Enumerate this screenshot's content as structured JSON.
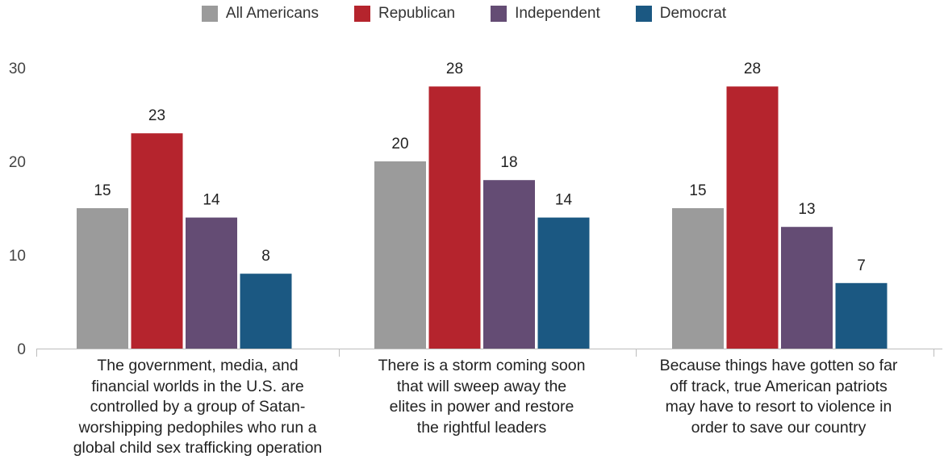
{
  "chart_data": {
    "type": "bar",
    "title": "",
    "xlabel": "",
    "ylabel": "",
    "ylim": [
      0,
      30
    ],
    "yticks": [
      0,
      10,
      20,
      30
    ],
    "grid": false,
    "legend_position": "top-center",
    "categories": [
      "The government, media, and financial worlds in the U.S. are controlled by a group of Satan-worshipping pedophiles who run a global child sex trafficking operation",
      "There is a storm coming soon that will sweep away the elites in power and restore the rightful leaders",
      "Because things have gotten so far off track, true American patriots may have to resort to violence in order to save our country"
    ],
    "category_lines": [
      [
        "The government, media, and",
        "financial worlds in the U.S. are",
        "controlled by a group of Satan-",
        "worshipping pedophiles who run a",
        "global child sex trafficking operation"
      ],
      [
        "There is a storm coming soon",
        "that will sweep away the",
        "elites in power and restore",
        "the rightful leaders"
      ],
      [
        "Because things have gotten so far",
        "off track, true American patriots",
        "may have to resort to violence in",
        "order to save our country"
      ]
    ],
    "series": [
      {
        "name": "All Americans",
        "color": "#9b9b9b",
        "values": [
          15,
          20,
          15
        ]
      },
      {
        "name": "Republican",
        "color": "#b5242d",
        "values": [
          23,
          28,
          28
        ]
      },
      {
        "name": "Independent",
        "color": "#644c74",
        "values": [
          14,
          18,
          13
        ]
      },
      {
        "name": "Democrat",
        "color": "#1b5882",
        "values": [
          8,
          14,
          7
        ]
      }
    ]
  }
}
